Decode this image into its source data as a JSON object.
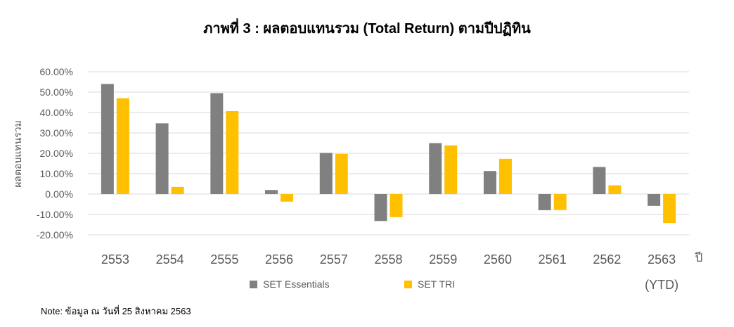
{
  "title": "ภาพที่ 3 : ผลตอบแทนรวม (Total Return) ตามปีปฏิทิน",
  "note": "Note: ข้อมูล ณ วันที่ 25 สิงหาคม 2563",
  "colors": {
    "series1": "#808080",
    "series2": "#FFC000",
    "grid": "#d9d9d9",
    "text": "#595959"
  },
  "chart_data": {
    "type": "bar",
    "title": "ภาพที่ 3 : ผลตอบแทนรวม (Total Return) ตามปีปฏิทิน",
    "xlabel": "ปี",
    "ylabel": "ผลตอบแทนรวม",
    "categories": [
      "2553",
      "2554",
      "2555",
      "2556",
      "2557",
      "2558",
      "2559",
      "2560",
      "2561",
      "2562",
      "2563"
    ],
    "category_sublabels": [
      "",
      "",
      "",
      "",
      "",
      "",
      "",
      "",
      "",
      "",
      "(YTD)"
    ],
    "series": [
      {
        "name": "SET Essentials",
        "color": "#808080",
        "values": [
          54.0,
          34.7,
          49.5,
          2.0,
          20.2,
          -13.2,
          25.0,
          11.3,
          -7.9,
          13.3,
          -5.8
        ]
      },
      {
        "name": "SET TRI",
        "color": "#FFC000",
        "values": [
          47.0,
          3.5,
          40.7,
          -3.7,
          19.7,
          -11.3,
          23.9,
          17.3,
          -7.8,
          4.3,
          -14.2
        ]
      }
    ],
    "ylim": [
      -20,
      60
    ],
    "yticks": [
      60,
      50,
      40,
      30,
      20,
      10,
      0,
      -10,
      -20
    ],
    "ytick_labels": [
      "60.00%",
      "50.00%",
      "40.00%",
      "30.00%",
      "20.00%",
      "10.00%",
      "0.00%",
      "-10.00%",
      "-20.00%"
    ],
    "grid": true,
    "legend_position": "bottom"
  }
}
